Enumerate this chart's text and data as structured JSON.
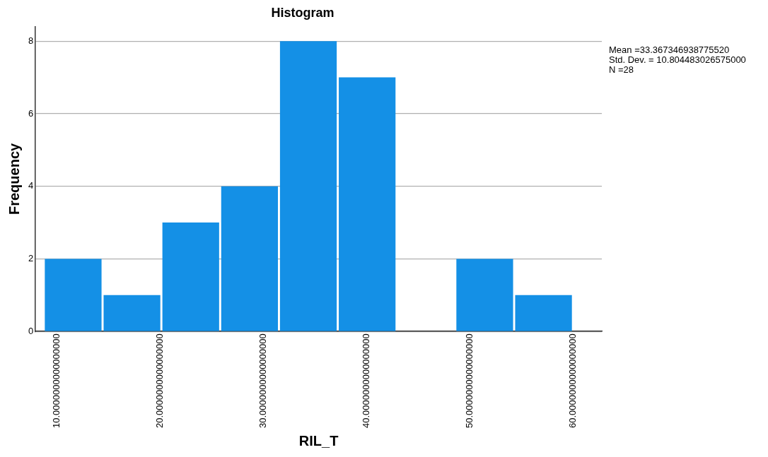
{
  "chart_data": {
    "type": "histogram",
    "title": "Histogram",
    "xlabel": "RIL_T",
    "ylabel": "Frequency",
    "bins": [
      8.7,
      14.4,
      20.1,
      25.8,
      31.5,
      37.2,
      42.9,
      48.6,
      54.3,
      60.0
    ],
    "values": [
      2,
      1,
      3,
      4,
      8,
      7,
      0,
      2,
      1
    ],
    "color": "#1490e6",
    "xlim": [
      7.9,
      62.8
    ],
    "xticks": [
      {
        "value": 10,
        "label": "10.0000000000000000"
      },
      {
        "value": 20,
        "label": "20.0000000000000000"
      },
      {
        "value": 30,
        "label": "30.0000000000000000"
      },
      {
        "value": 40,
        "label": "40.0000000000000000"
      },
      {
        "value": 50,
        "label": "50.0000000000000000"
      },
      {
        "value": 60,
        "label": "60.0000000000000000"
      }
    ],
    "ylim": [
      0,
      8.4
    ],
    "yticks": [
      0,
      2,
      4,
      6,
      8
    ],
    "grid": "y",
    "legend": false,
    "annotations": [
      "Mean =33.367346938775520",
      "Std. Dev. = 10.804483026575000",
      "N =28"
    ]
  }
}
